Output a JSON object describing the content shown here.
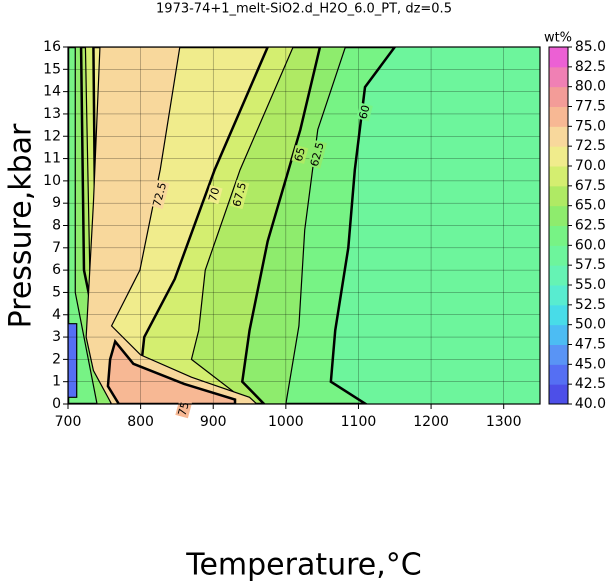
{
  "chart_data": {
    "type": "contour",
    "title": "1973-74+1_melt-SiO2.d_H2O_6.0_PT, dz=0.5",
    "x_label": "Temperature,°C",
    "y_label": "Pressure,kbar",
    "xlim": [
      700,
      1350
    ],
    "xticks": [
      700,
      800,
      900,
      1000,
      1100,
      1200,
      1300
    ],
    "ylim": [
      0,
      16
    ],
    "yticks": [
      0,
      1,
      2,
      3,
      4,
      5,
      6,
      7,
      8,
      9,
      10,
      11,
      12,
      13,
      14,
      15,
      16
    ],
    "grid": true,
    "background_level": 57.5,
    "contours": [
      {
        "level": 60,
        "x": [
          700,
          1150,
          1109,
          1095,
          1086,
          1068,
          1062,
          1110,
          700
        ],
        "y": [
          16,
          16,
          14.2,
          10.5,
          7,
          3.3,
          1,
          0,
          0
        ]
      },
      {
        "level": 62.5,
        "x": [
          710,
          1082,
          1044,
          1026,
          1018,
          1000,
          740,
          710
        ],
        "y": [
          16,
          16,
          12.3,
          7.8,
          3.5,
          0,
          0,
          5
        ]
      },
      {
        "level": 65,
        "x": [
          718,
          1047,
          1020,
          975,
          950,
          940,
          970,
          760,
          722
        ],
        "y": [
          16,
          16,
          12.3,
          7.3,
          3.3,
          1,
          0,
          0,
          6
        ]
      },
      {
        "level": 67.5,
        "x": [
          724,
          1010,
          937,
          889,
          880,
          870,
          930,
          950,
          770,
          730
        ],
        "y": [
          16,
          16,
          10.5,
          6,
          3.3,
          2,
          0.5,
          0,
          0,
          6
        ]
      },
      {
        "level": 70,
        "x": [
          735,
          975,
          902,
          847,
          805,
          800,
          880,
          900,
          780,
          740,
          738
        ],
        "y": [
          16,
          16,
          10.5,
          5.6,
          3,
          1.5,
          0.8,
          0,
          0,
          2,
          6
        ]
      },
      {
        "level": 72.5,
        "x": [
          744,
          854,
          827,
          799,
          760,
          800,
          870,
          950,
          960,
          760,
          735,
          725,
          735
        ],
        "y": [
          16,
          16,
          10.5,
          6,
          3.5,
          2.2,
          1.2,
          0.3,
          0,
          0,
          1.5,
          3,
          9
        ]
      },
      {
        "level": 75,
        "x": [
          765,
          790,
          860,
          930,
          930,
          770,
          755,
          758
        ],
        "y": [
          2.8,
          1.8,
          0.9,
          0.2,
          0,
          0,
          0.8,
          2
        ]
      },
      {
        "level": 42.5,
        "x": [
          700,
          712,
          712,
          700
        ],
        "y": [
          3.6,
          3.6,
          0.3,
          0.3
        ]
      }
    ],
    "colorbar": {
      "label": "wt%",
      "ticks": [
        {
          "value": 40,
          "label": "40.0"
        },
        {
          "value": 42.5,
          "label": "42.5"
        },
        {
          "value": 45,
          "label": "45.0"
        },
        {
          "value": 47.5,
          "label": "47.5"
        },
        {
          "value": 50,
          "label": "50.0"
        },
        {
          "value": 52.5,
          "label": "52.5"
        },
        {
          "value": 55,
          "label": "55.0"
        },
        {
          "value": 57.5,
          "label": "57.5"
        },
        {
          "value": 60,
          "label": "60.0"
        },
        {
          "value": 62.5,
          "label": "62.5"
        },
        {
          "value": 65,
          "label": "65.0"
        },
        {
          "value": 67.5,
          "label": "67.5"
        },
        {
          "value": 70,
          "label": "70.0"
        },
        {
          "value": 72.5,
          "label": "72.5"
        },
        {
          "value": 75,
          "label": "75.0"
        },
        {
          "value": 77.5,
          "label": "77.5"
        },
        {
          "value": 80,
          "label": "80.0"
        },
        {
          "value": 82.5,
          "label": "82.5"
        },
        {
          "value": 85,
          "label": "85.0"
        }
      ],
      "colors": [
        "#4a3fe0",
        "#4f5ef0",
        "#5a7ff5",
        "#58a8f5",
        "#40d0f0",
        "#50e8e0",
        "#60f0c0",
        "#6af5a8",
        "#6ff590",
        "#7ef07a",
        "#9ee860",
        "#c0ec68",
        "#e8f078",
        "#f8e8a0",
        "#f8c898",
        "#f5a890",
        "#f090a0",
        "#f070c8",
        "#e850e0"
      ]
    }
  }
}
